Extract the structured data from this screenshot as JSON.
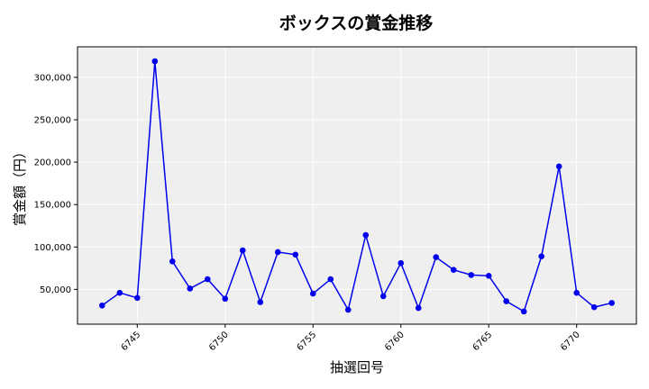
{
  "chart_data": {
    "type": "line",
    "title": "ボックスの賞金推移",
    "xlabel": "抽選回号",
    "ylabel": "賞金額（円）",
    "x": [
      6743,
      6744,
      6745,
      6746,
      6747,
      6748,
      6749,
      6750,
      6751,
      6752,
      6753,
      6754,
      6755,
      6756,
      6757,
      6758,
      6759,
      6760,
      6761,
      6762,
      6763,
      6764,
      6765,
      6766,
      6767,
      6768,
      6769,
      6770,
      6771,
      6772
    ],
    "series": [
      {
        "values": [
          31000,
          46000,
          40000,
          319000,
          83000,
          51000,
          62000,
          39000,
          96000,
          35000,
          94000,
          91000,
          45000,
          62000,
          26000,
          114000,
          42000,
          81000,
          28000,
          88000,
          73000,
          67000,
          66000,
          36000,
          24000,
          89000,
          195000,
          46000,
          29000,
          34000
        ],
        "color": "#0000ee"
      }
    ],
    "xlim": [
      6741.6,
      6773.4
    ],
    "ylim": [
      9000,
      336000
    ],
    "xticks": [
      "6745",
      "6750",
      "6755",
      "6760",
      "6765",
      "6770"
    ],
    "yticks": [
      "50,000",
      "100,000",
      "150,000",
      "200,000",
      "250,000",
      "300,000"
    ],
    "grid": true,
    "colors": {
      "plot_bg": "#efefef",
      "grid": "#ffffff",
      "line": "#0000ee"
    }
  }
}
